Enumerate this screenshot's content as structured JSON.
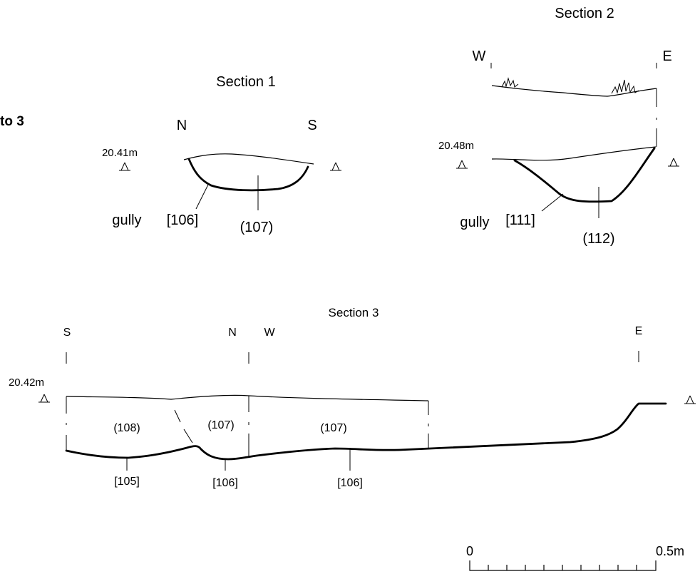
{
  "figure_heading": "to 3",
  "section1": {
    "title": "Section 1",
    "left_label": "N",
    "right_label": "S",
    "datum": "20.41m",
    "feature": "gully",
    "cut": "[106]",
    "fill": "(107)"
  },
  "section2": {
    "title": "Section 2",
    "left_label": "W",
    "right_label": "E",
    "datum": "20.48m",
    "feature": "gully",
    "cut": "[111]",
    "fill": "(112)"
  },
  "section3": {
    "title": "Section 3",
    "orientation_labels": [
      "S",
      "N",
      "W",
      "E"
    ],
    "datum": "20.42m",
    "fills": [
      "(108)",
      "(107)",
      "(107)"
    ],
    "cuts": [
      "[105]",
      "[106]",
      "[106]"
    ]
  },
  "scale_bar": {
    "start_label": "0",
    "end_label": "0.5m"
  }
}
